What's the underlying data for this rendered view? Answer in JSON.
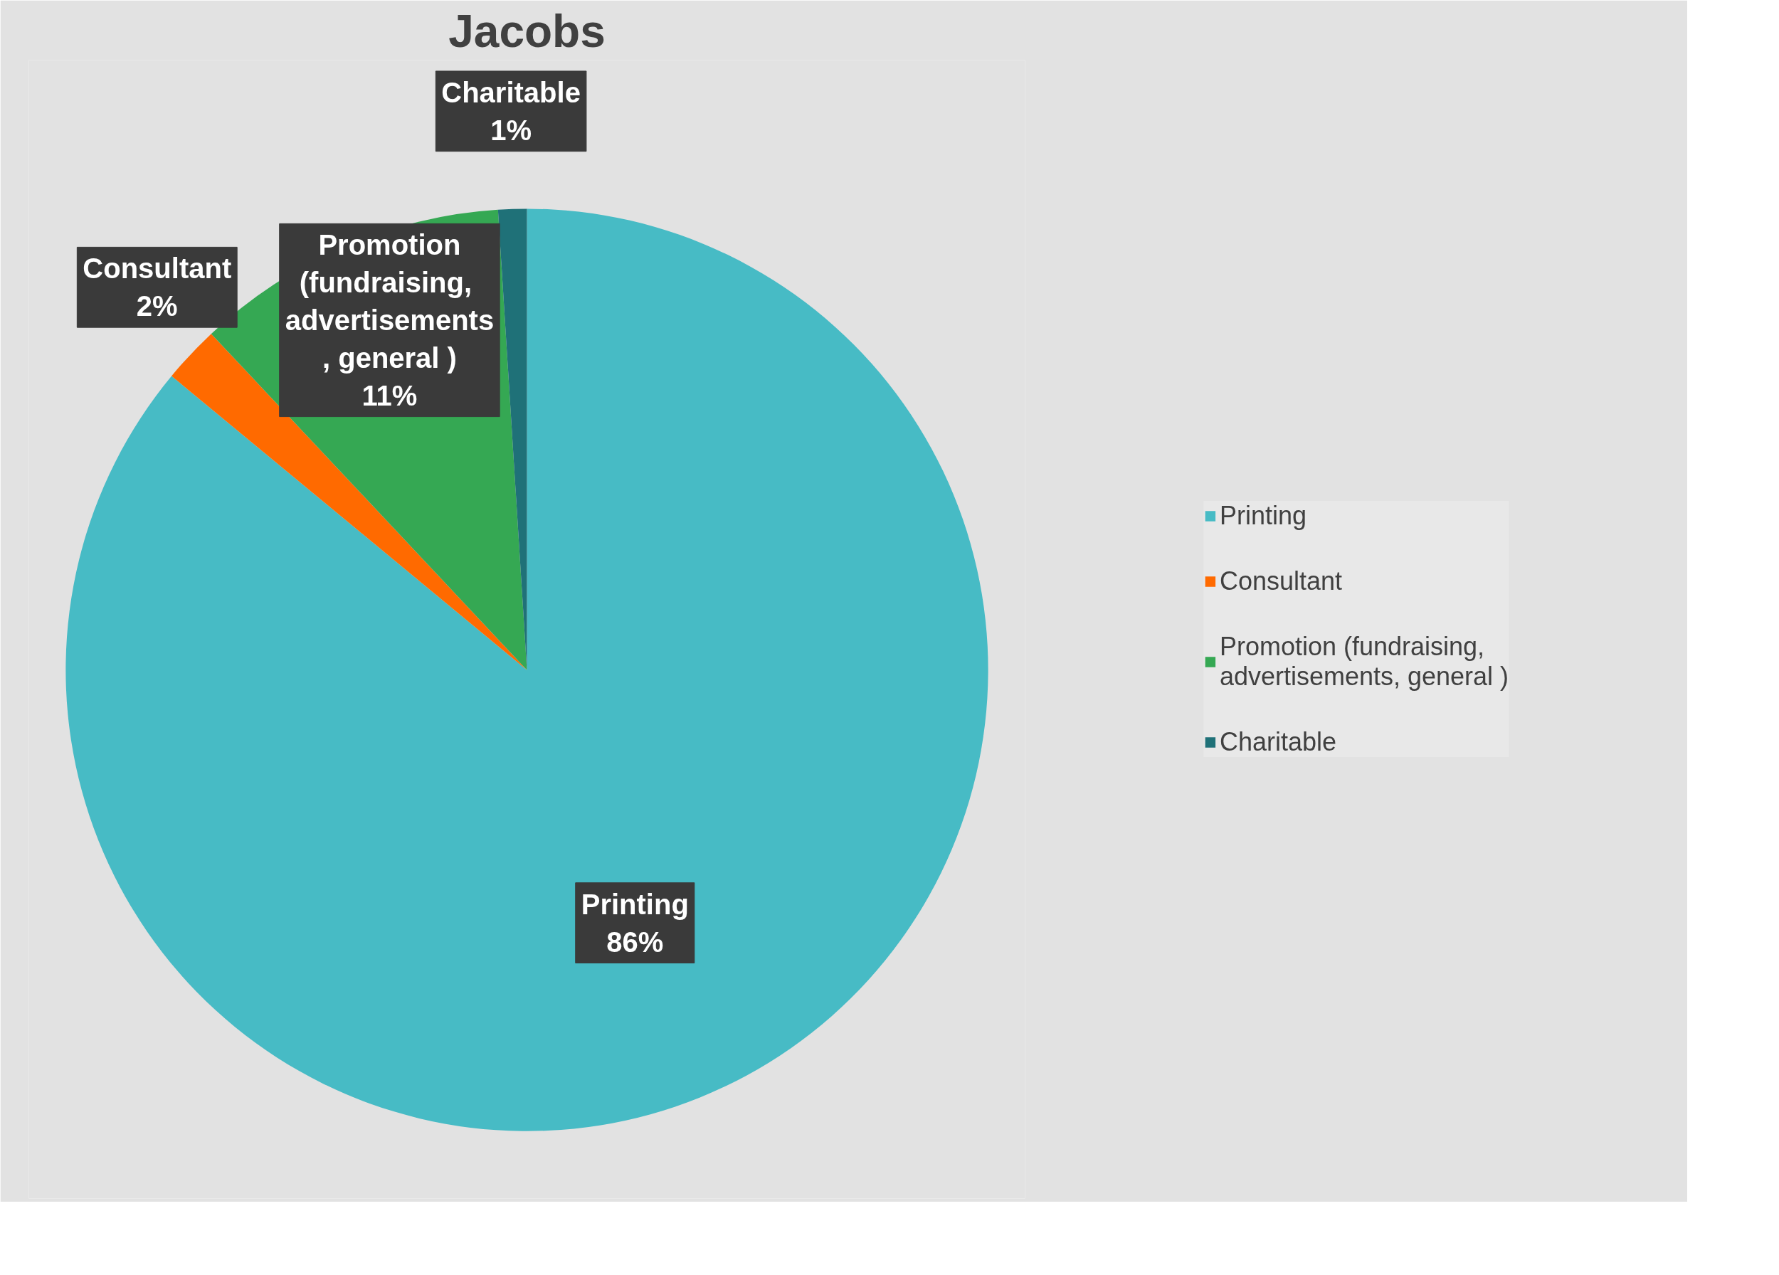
{
  "chart_data": {
    "type": "pie",
    "title": "Jacobs",
    "categories": [
      "Printing",
      "Consultant",
      "Promotion (fundraising, advertisements, general )",
      "Charitable"
    ],
    "values": [
      86,
      2,
      11,
      1
    ],
    "colors": [
      "#47bbc5",
      "#ff6a00",
      "#35a853",
      "#1f7178"
    ],
    "value_labels": [
      "86%",
      "2%",
      "11%",
      "1%"
    ],
    "legend": "right"
  }
}
